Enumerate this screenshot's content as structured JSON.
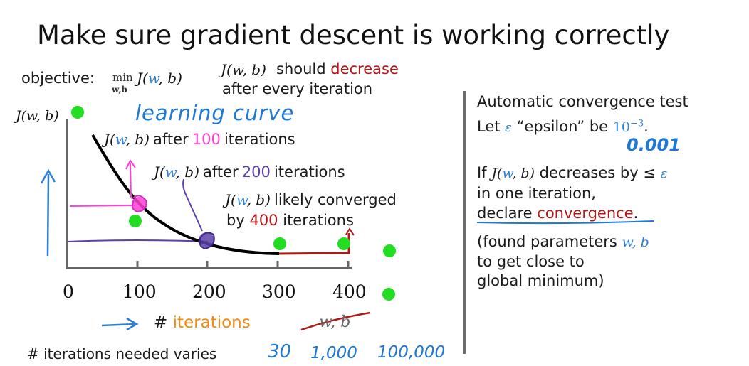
{
  "title": "Make sure gradient descent is working correctly",
  "objective": {
    "label": "objective:",
    "min": "min",
    "sub": "w,b",
    "fn": "J(",
    "w": "w",
    "rest": ", b)"
  },
  "cost_expr": "J(w, b)",
  "should_note": {
    "part1": "should",
    "decrease": "decrease",
    "part2": "after every iteration"
  },
  "y_axis_label": "J(w, b)",
  "learning_curve_label": "learning curve",
  "annotations": {
    "after100": {
      "prefix": "after",
      "count": "100",
      "suffix": "iterations"
    },
    "after200": {
      "prefix": "after",
      "count": "200",
      "suffix": "iterations"
    },
    "converged": {
      "line1": "likely converged",
      "line2_prefix": "by",
      "count": "400",
      "line2_suffix": "iterations"
    }
  },
  "x_axis": {
    "ticks": [
      "0",
      "100",
      "200",
      "300",
      "400"
    ],
    "label_prefix": "#",
    "label_word": "iterations",
    "crossed_out": "w, b"
  },
  "iterations_needed": {
    "label": "# iterations needed varies",
    "values": [
      "30",
      "1,000",
      "100,000"
    ]
  },
  "convergence_test": {
    "title": "Automatic convergence test",
    "let_prefix": "Let",
    "epsilon_symbol": "ε",
    "epsilon_word": "“epsilon” be",
    "epsilon_value": "10",
    "epsilon_exp": "−3",
    "epsilon_period": ".",
    "epsilon_decimal": "0.001",
    "if_prefix": "If",
    "if_suffix": "decreases by ≤",
    "line_one_iteration": "in one iteration,",
    "declare": "declare",
    "convergence": "convergence",
    "declare_period": ".",
    "found_prefix": "(found parameters",
    "found_params": "w, b",
    "found_line2": "to get close to",
    "found_line3": "global minimum)"
  },
  "colors": {
    "pink": "#ff3fd6",
    "purple": "#5c3fa8",
    "blue": "#2f7fd6",
    "red": "#b01818",
    "orange": "#f08a14",
    "green": "#22dd22"
  }
}
